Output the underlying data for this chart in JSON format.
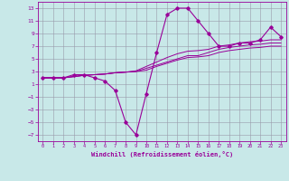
{
  "xlabel": "Windchill (Refroidissement éolien,°C)",
  "bg_color": "#c8e8e8",
  "line_color": "#990099",
  "grid_color": "#9999aa",
  "xlim": [
    -0.5,
    23.5
  ],
  "ylim": [
    -8,
    14
  ],
  "xticks": [
    0,
    1,
    2,
    3,
    4,
    5,
    6,
    7,
    8,
    9,
    10,
    11,
    12,
    13,
    14,
    15,
    16,
    17,
    18,
    19,
    20,
    21,
    22,
    23
  ],
  "yticks": [
    -7,
    -5,
    -3,
    -1,
    1,
    3,
    5,
    7,
    9,
    11,
    13
  ],
  "x": [
    0,
    1,
    2,
    3,
    4,
    5,
    6,
    7,
    8,
    9,
    10,
    11,
    12,
    13,
    14,
    15,
    16,
    17,
    18,
    19,
    20,
    21,
    22,
    23
  ],
  "y_main": [
    2,
    2,
    2,
    2.5,
    2.5,
    2,
    1.5,
    0,
    -5,
    -7,
    -0.5,
    6,
    12,
    13,
    13,
    11,
    9,
    7,
    7,
    7.5,
    7.5,
    8,
    10,
    8.5
  ],
  "y_line1": [
    2,
    2,
    2,
    2.2,
    2.4,
    2.5,
    2.6,
    2.8,
    2.9,
    3.0,
    3.5,
    4.0,
    4.5,
    5.0,
    5.5,
    5.5,
    6.0,
    6.5,
    6.8,
    7.0,
    7.2,
    7.3,
    7.5,
    7.5
  ],
  "y_line2": [
    2,
    2,
    2,
    2.2,
    2.4,
    2.5,
    2.6,
    2.8,
    2.9,
    3.1,
    3.8,
    4.5,
    5.2,
    5.8,
    6.2,
    6.3,
    6.5,
    7.0,
    7.2,
    7.5,
    7.7,
    7.8,
    8.0,
    8.0
  ],
  "y_line3": [
    2,
    2,
    2,
    2.2,
    2.4,
    2.5,
    2.6,
    2.8,
    2.9,
    3.0,
    3.2,
    3.8,
    4.3,
    4.8,
    5.2,
    5.3,
    5.5,
    6.0,
    6.3,
    6.5,
    6.7,
    6.8,
    7.0,
    7.0
  ]
}
